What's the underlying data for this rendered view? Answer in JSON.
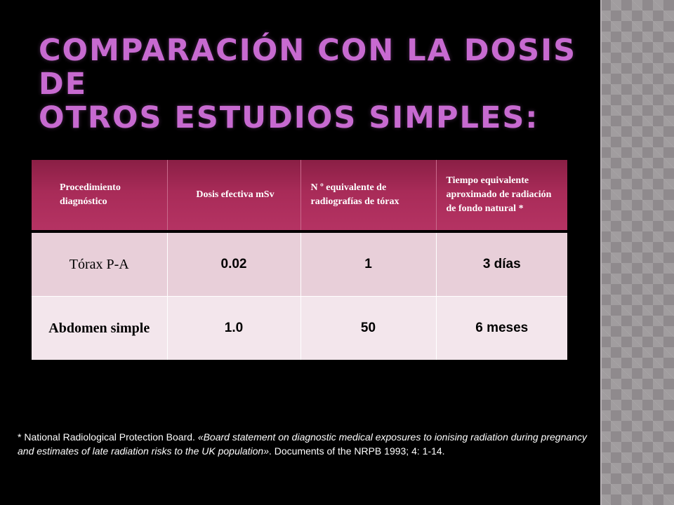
{
  "slide": {
    "title_line1": "COMPARACIÓN CON LA DOSIS DE",
    "title_line2": "OTROS ESTUDIOS SIMPLES:"
  },
  "table": {
    "headers": [
      "Procedimiento diagnóstico",
      "Dosis efectiva mSv",
      "N º equivalente de radiografías de tórax",
      "Tiempo equivalente aproximado de radiación de fondo natural *"
    ],
    "rows": [
      {
        "procedimiento": "Tórax  P-A",
        "dosis": "0.02",
        "equivalente": "1",
        "tiempo": "3 días"
      },
      {
        "procedimiento": "Abdomen simple",
        "dosis": "1.0",
        "equivalente": "50",
        "tiempo": "6 meses"
      }
    ],
    "colors": {
      "header_bg": "#a82b58",
      "row1_bg": "#e8cfd9",
      "row2_bg": "#f3e6ec"
    }
  },
  "footnote": {
    "prefix": "* National Radiological Protection Board. ",
    "italic": "«Board statement on diagnostic medical exposures to ionising radiation during pregnancy and estimates of late radiation risks to the UK population»",
    "suffix": ". Documents of the NRPB 1993; 4: 1-14."
  },
  "theme": {
    "background": "#000000",
    "title_color": "#c76ad0",
    "sidebar_color": "#8f8a8d"
  }
}
